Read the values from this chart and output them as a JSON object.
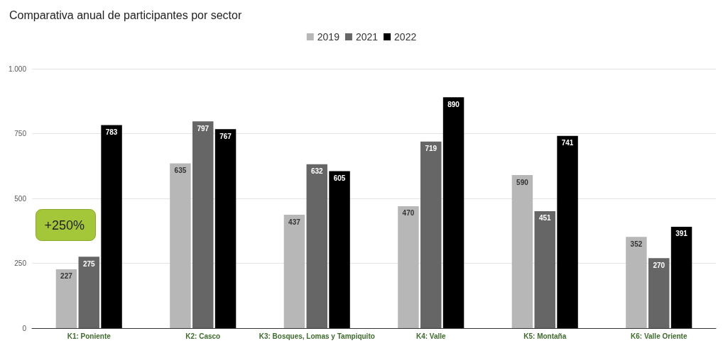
{
  "chart_data": {
    "type": "bar",
    "title": "Comparativa anual de participantes por sector",
    "categories": [
      "K1: Poniente",
      "K2: Casco",
      "K3: Bosques, Lomas y Tampiquito",
      "K4: Valle",
      "K5: Montaña",
      "K6: Valle Oriente"
    ],
    "series": [
      {
        "name": "2019",
        "color": "#b7b7b7",
        "values": [
          227,
          635,
          437,
          470,
          590,
          352
        ]
      },
      {
        "name": "2021",
        "color": "#666666",
        "values": [
          275,
          797,
          632,
          719,
          451,
          270
        ]
      },
      {
        "name": "2022",
        "color": "#000000",
        "values": [
          783,
          767,
          605,
          890,
          741,
          391
        ]
      }
    ],
    "ylim": [
      0,
      1000
    ],
    "yticks": [
      0,
      250,
      500,
      750,
      {
        "value": 1000,
        "label": "1.000"
      }
    ],
    "grid": "y",
    "legend": "top",
    "data_labels": true,
    "annotations": [
      "+250%"
    ]
  }
}
